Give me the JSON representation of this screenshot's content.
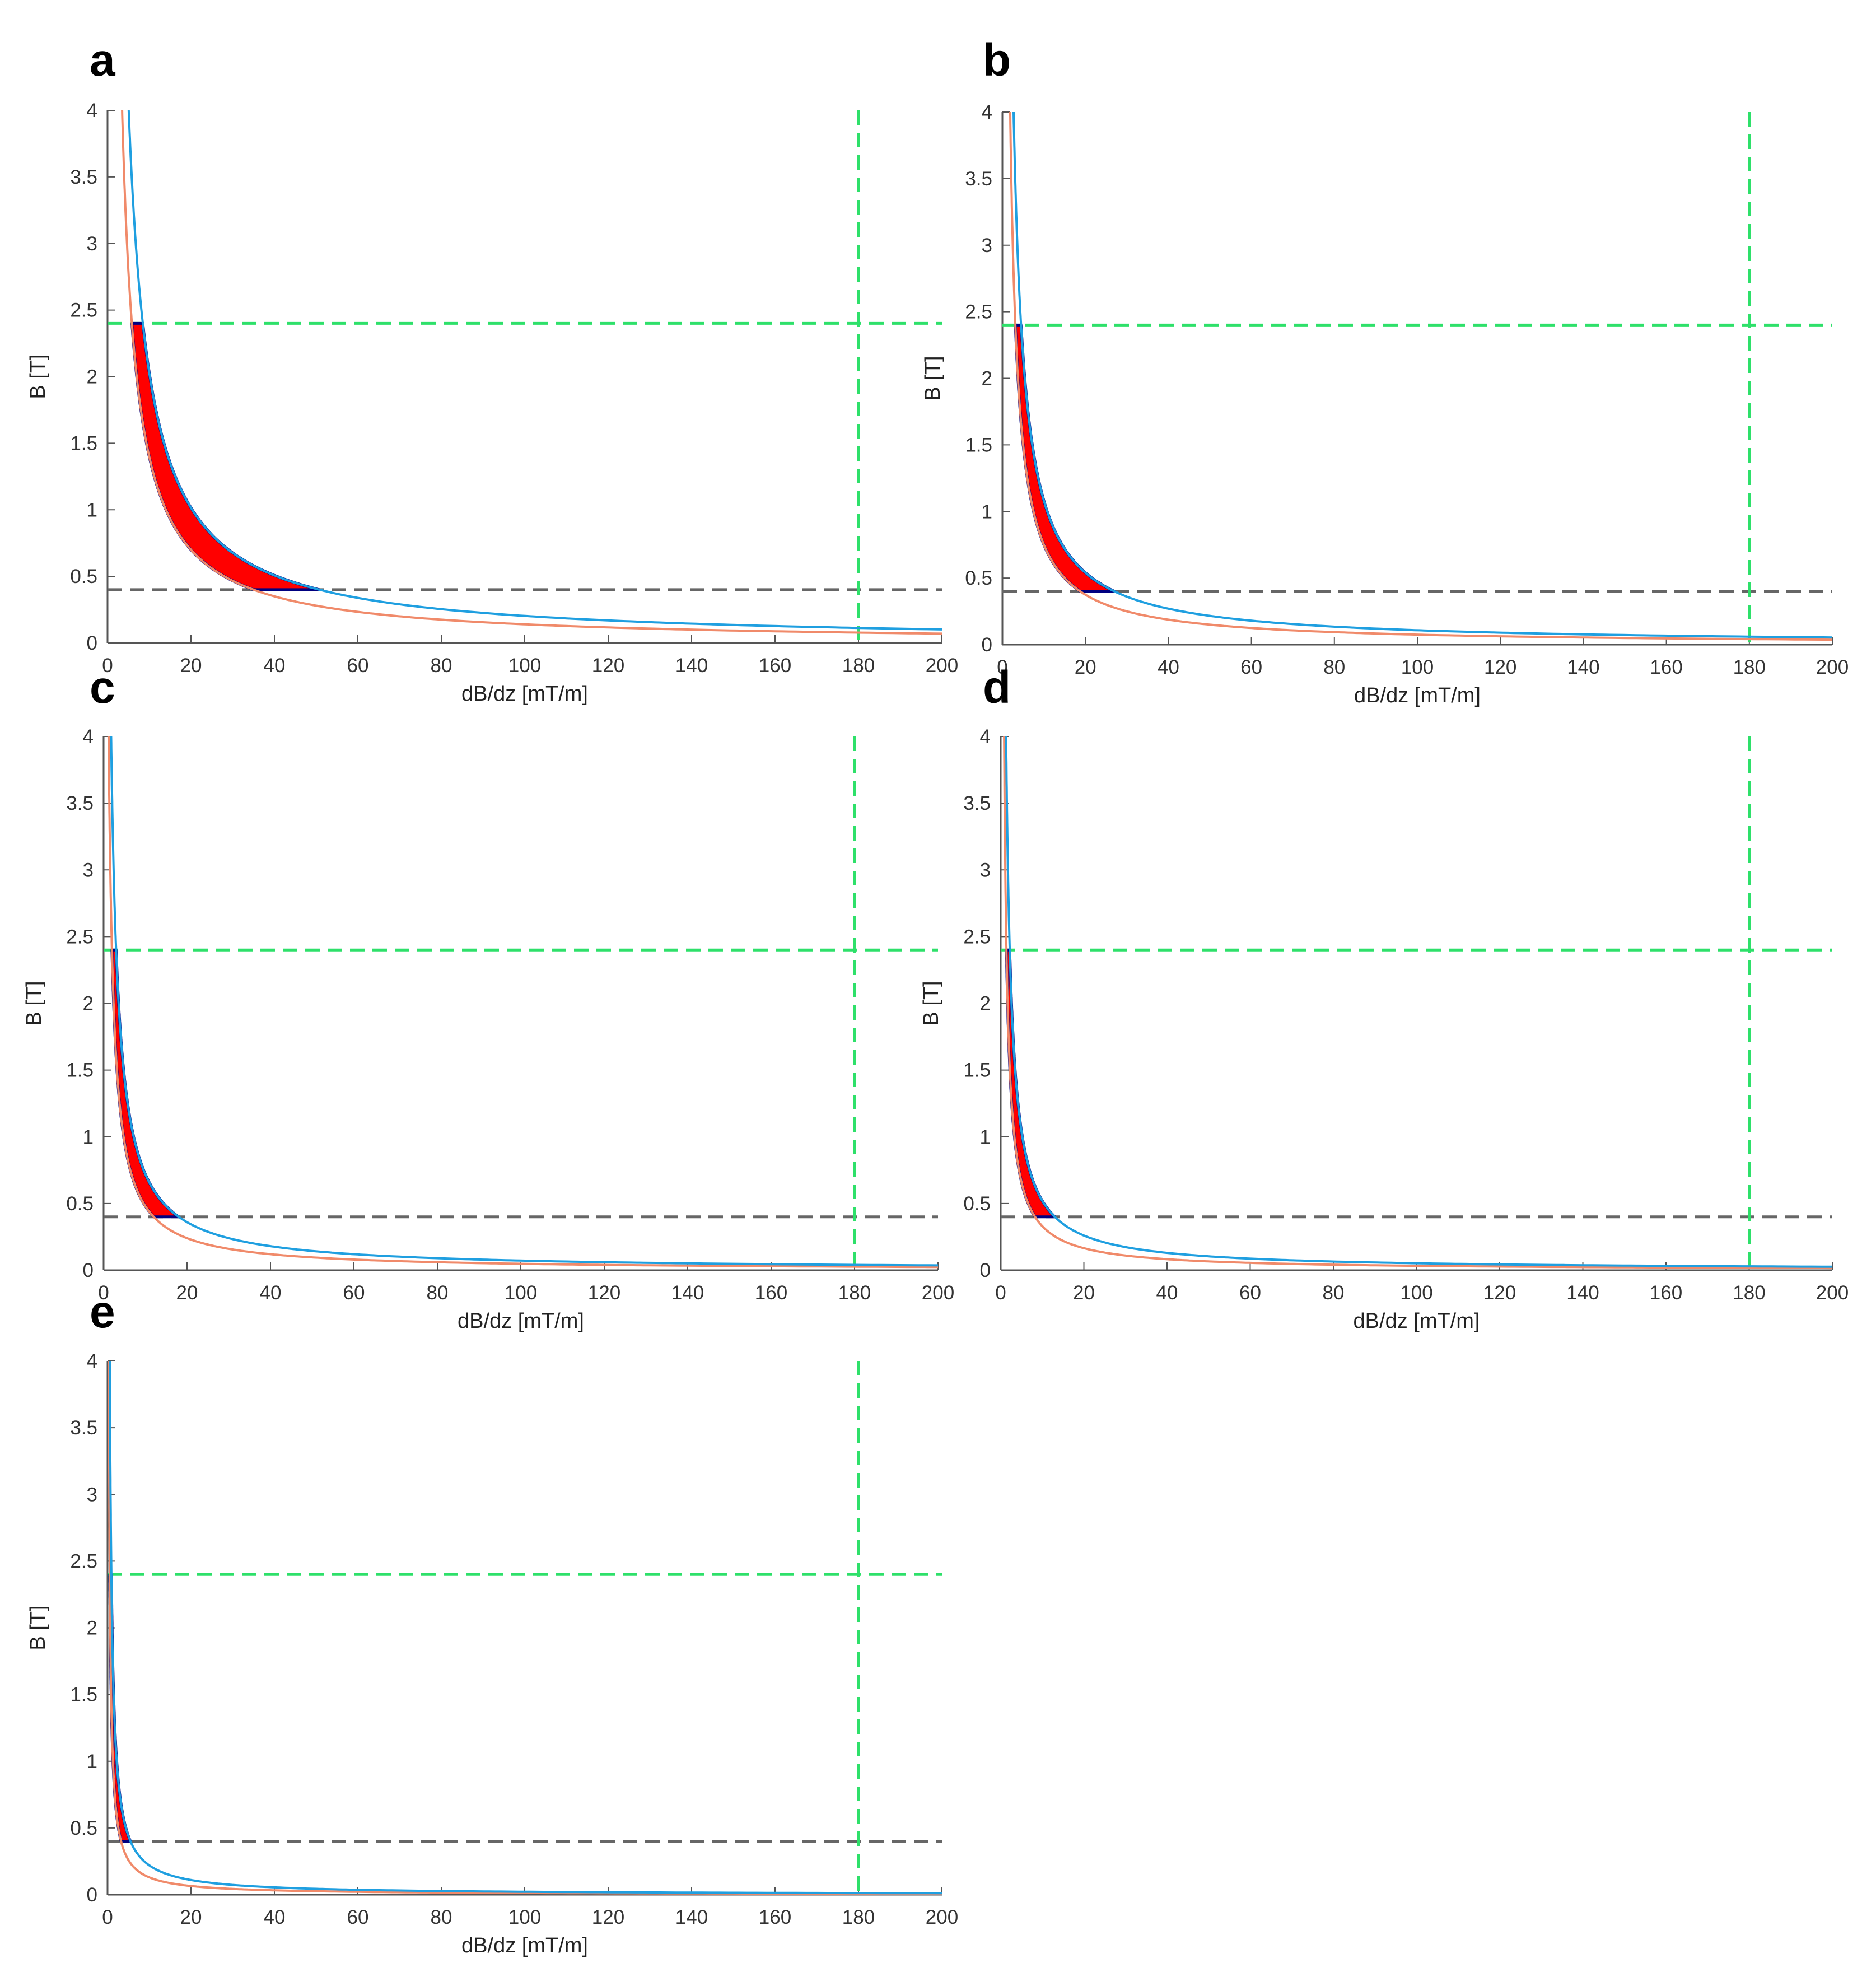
{
  "chart_data": [
    {
      "panel": "a",
      "type": "line",
      "xlabel": "dB/dz [mT/m]",
      "ylabel": "B [T]",
      "xlim": [
        0,
        200
      ],
      "ylim": [
        0,
        4
      ],
      "xticks": [
        0,
        20,
        40,
        60,
        80,
        100,
        120,
        140,
        160,
        180,
        200
      ],
      "yticks": [
        0,
        0.5,
        1,
        1.5,
        2,
        2.5,
        3,
        3.5,
        4
      ],
      "ytick_labels": [
        "0",
        "0.5",
        "1",
        "1.5",
        "2",
        "2.5",
        "3",
        "3.5",
        "4"
      ],
      "grid": false,
      "reference_lines": {
        "horizontal_green": 2.4,
        "horizontal_gray": 0.4,
        "vertical_green": 180
      },
      "series": [
        {
          "color": "#1f9fe0",
          "k": 20.3
        },
        {
          "color": "#f08a6a",
          "k": 14.0
        }
      ],
      "shaded_region": {
        "color": "#ff0000",
        "edge_color": "#000080",
        "y_range": [
          0.4,
          2.4
        ]
      }
    },
    {
      "panel": "b",
      "type": "line",
      "xlabel": "dB/dz [mT/m]",
      "ylabel": "B [T]",
      "xlim": [
        0,
        200
      ],
      "ylim": [
        0,
        4
      ],
      "xticks": [
        0,
        20,
        40,
        60,
        80,
        100,
        120,
        140,
        160,
        180,
        200
      ],
      "yticks": [
        0,
        0.5,
        1,
        1.5,
        2,
        2.5,
        3,
        3.5,
        4
      ],
      "ytick_labels": [
        "0",
        "0.5",
        "1",
        "1.5",
        "2",
        "2.5",
        "3",
        "3.5",
        "4"
      ],
      "grid": false,
      "reference_lines": {
        "horizontal_green": 2.4,
        "horizontal_gray": 0.4,
        "vertical_green": 180
      },
      "series": [
        {
          "color": "#1f9fe0",
          "k": 10.8
        },
        {
          "color": "#f08a6a",
          "k": 7.5
        }
      ],
      "shaded_region": {
        "color": "#ff0000",
        "edge_color": "#000080",
        "y_range": [
          0.4,
          2.4
        ]
      }
    },
    {
      "panel": "c",
      "type": "line",
      "xlabel": "dB/dz [mT/m]",
      "ylabel": "B [T]",
      "xlim": [
        0,
        200
      ],
      "ylim": [
        0,
        4
      ],
      "xticks": [
        0,
        20,
        40,
        60,
        80,
        100,
        120,
        140,
        160,
        180,
        200
      ],
      "yticks": [
        0,
        0.5,
        1,
        1.5,
        2,
        2.5,
        3,
        3.5,
        4
      ],
      "ytick_labels": [
        "0",
        "0.5",
        "1",
        "1.5",
        "2",
        "2.5",
        "3",
        "3.5",
        "4"
      ],
      "grid": false,
      "reference_lines": {
        "horizontal_green": 2.4,
        "horizontal_gray": 0.4,
        "vertical_green": 180
      },
      "series": [
        {
          "color": "#1f9fe0",
          "k": 7.2
        },
        {
          "color": "#f08a6a",
          "k": 4.8
        }
      ],
      "shaded_region": {
        "color": "#ff0000",
        "edge_color": "#000080",
        "y_range": [
          0.4,
          2.4
        ]
      }
    },
    {
      "panel": "d",
      "type": "line",
      "xlabel": "dB/dz [mT/m]",
      "ylabel": "B [T]",
      "xlim": [
        0,
        200
      ],
      "ylim": [
        0,
        4
      ],
      "xticks": [
        0,
        20,
        40,
        60,
        80,
        100,
        120,
        140,
        160,
        180,
        200
      ],
      "yticks": [
        0,
        0.5,
        1,
        1.5,
        2,
        2.5,
        3,
        3.5,
        4
      ],
      "ytick_labels": [
        "0",
        "0.5",
        "1",
        "1.5",
        "2",
        "2.5",
        "3",
        "3.5",
        "4"
      ],
      "grid": false,
      "reference_lines": {
        "horizontal_green": 2.4,
        "horizontal_gray": 0.4,
        "vertical_green": 180
      },
      "series": [
        {
          "color": "#1f9fe0",
          "k": 5.2
        },
        {
          "color": "#f08a6a",
          "k": 3.3
        }
      ],
      "shaded_region": {
        "color": "#ff0000",
        "edge_color": "#000080",
        "y_range": [
          0.4,
          2.4
        ]
      }
    },
    {
      "panel": "e",
      "type": "line",
      "xlabel": "dB/dz [mT/m]",
      "ylabel": "B [T]",
      "xlim": [
        0,
        200
      ],
      "ylim": [
        0,
        4
      ],
      "xticks": [
        0,
        20,
        40,
        60,
        80,
        100,
        120,
        140,
        160,
        180,
        200
      ],
      "yticks": [
        0,
        0.5,
        1,
        1.5,
        2,
        2.5,
        3,
        3.5,
        4
      ],
      "ytick_labels": [
        "0",
        "0.5",
        "1",
        "1.5",
        "2",
        "2.5",
        "3",
        "3.5",
        "4"
      ],
      "grid": false,
      "reference_lines": {
        "horizontal_green": 2.4,
        "horizontal_gray": 0.4,
        "vertical_green": 180
      },
      "series": [
        {
          "color": "#1f9fe0",
          "k": 2.2
        },
        {
          "color": "#f08a6a",
          "k": 1.3
        }
      ],
      "shaded_region": {
        "color": "#ff0000",
        "edge_color": "#000080",
        "y_range": [
          0.4,
          2.4
        ]
      }
    }
  ]
}
